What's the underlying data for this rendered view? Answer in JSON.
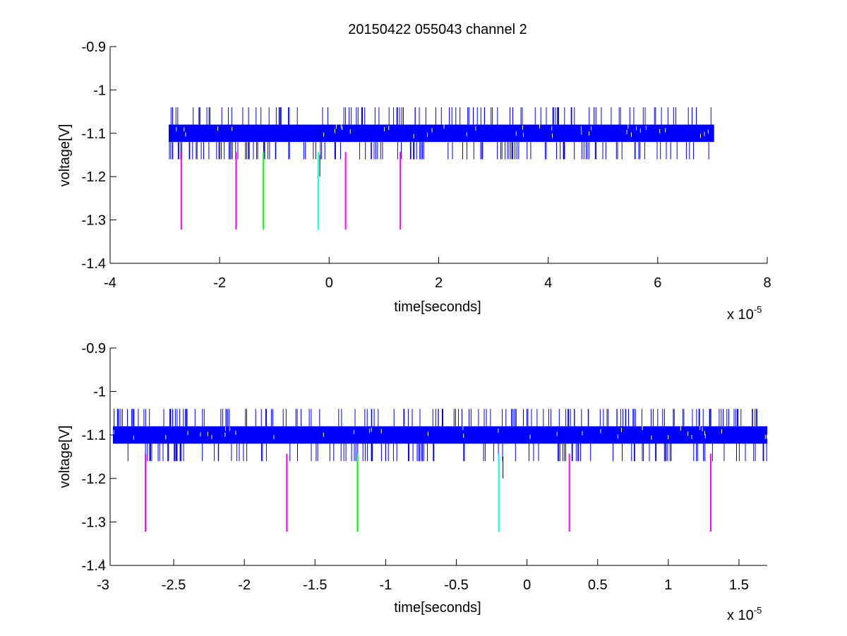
{
  "figure": {
    "title": "20150422 055043 channel 2"
  },
  "chart_data": [
    {
      "type": "line",
      "title": "20150422 055043 channel 2",
      "xlabel": "time[seconds]",
      "ylabel": "voltage[V]",
      "x_multiplier_label": "x 10",
      "x_multiplier_exp": "-5",
      "xlim": [
        -4e-05,
        8e-05
      ],
      "ylim": [
        -1.4,
        -0.9
      ],
      "xticks": [
        -4,
        -2,
        0,
        2,
        4,
        6,
        8
      ],
      "xtick_labels": [
        "-4",
        "-2",
        "0",
        "2",
        "4",
        "6",
        "8"
      ],
      "yticks": [
        -1.4,
        -1.3,
        -1.2,
        -1.1,
        -1.0,
        -0.9
      ],
      "ytick_labels": [
        "-1.4",
        "-1.3",
        "-1.2",
        "-1.1",
        "-1",
        "-0.9"
      ],
      "grid": false,
      "series": [
        {
          "kind": "noisy-band",
          "color": "#0000ff",
          "x_range": [
            -2.93e-05,
            7.03e-05
          ],
          "band": [
            -1.12,
            -1.08
          ],
          "spike_high": -1.04,
          "spike_low": -1.16
        }
      ],
      "markers": [
        {
          "x": -2.7e-05,
          "y0": -1.143,
          "y1": -1.322,
          "color": "#ff00ff"
        },
        {
          "x": -1.7e-05,
          "y0": -1.143,
          "y1": -1.322,
          "color": "#ff00ff"
        },
        {
          "x": -1.2e-05,
          "y0": -1.143,
          "y1": -1.322,
          "color": "#00ff00"
        },
        {
          "x": -2e-06,
          "y0": -1.143,
          "y1": -1.322,
          "color": "#00ffff"
        },
        {
          "x": 3e-06,
          "y0": -1.143,
          "y1": -1.322,
          "color": "#ff00ff"
        },
        {
          "x": 1.3e-05,
          "y0": -1.143,
          "y1": -1.322,
          "color": "#ff00ff"
        }
      ],
      "annotations": [
        {
          "x": -1.7e-06,
          "y0": -1.15,
          "y1": -1.2,
          "color": "#000000"
        }
      ]
    },
    {
      "type": "line",
      "title": "",
      "xlabel": "time[seconds]",
      "ylabel": "voltage[V]",
      "x_multiplier_label": "x 10",
      "x_multiplier_exp": "-5",
      "xlim": [
        -2.95e-05,
        1.7e-05
      ],
      "ylim": [
        -1.4,
        -0.9
      ],
      "xticks": [
        -3,
        -2.5,
        -2,
        -1.5,
        -1,
        -0.5,
        0,
        0.5,
        1,
        1.5
      ],
      "xtick_labels": [
        "-3",
        "-2.5",
        "-2",
        "-1.5",
        "-1",
        "-0.5",
        "0",
        "0.5",
        "1",
        "1.5"
      ],
      "yticks": [
        -1.4,
        -1.3,
        -1.2,
        -1.1,
        -1.0,
        -0.9
      ],
      "ytick_labels": [
        "-1.4",
        "-1.3",
        "-1.2",
        "-1.1",
        "-1",
        "-0.9"
      ],
      "grid": false,
      "series": [
        {
          "kind": "noisy-band",
          "color": "#0000ff",
          "x_range": [
            -2.93e-05,
            1.7e-05
          ],
          "band": [
            -1.12,
            -1.08
          ],
          "spike_high": -1.04,
          "spike_low": -1.16
        }
      ],
      "markers": [
        {
          "x": -2.7e-05,
          "y0": -1.143,
          "y1": -1.322,
          "color": "#ff00ff"
        },
        {
          "x": -1.7e-05,
          "y0": -1.143,
          "y1": -1.322,
          "color": "#ff00ff"
        },
        {
          "x": -1.2e-05,
          "y0": -1.143,
          "y1": -1.322,
          "color": "#00ff00"
        },
        {
          "x": -2e-06,
          "y0": -1.143,
          "y1": -1.322,
          "color": "#00ffff"
        },
        {
          "x": 3e-06,
          "y0": -1.143,
          "y1": -1.322,
          "color": "#ff00ff"
        },
        {
          "x": 1.3e-05,
          "y0": -1.143,
          "y1": -1.322,
          "color": "#ff00ff"
        }
      ],
      "annotations": [
        {
          "x": -1.7e-06,
          "y0": -1.15,
          "y1": -1.2,
          "color": "#000000"
        }
      ]
    }
  ]
}
